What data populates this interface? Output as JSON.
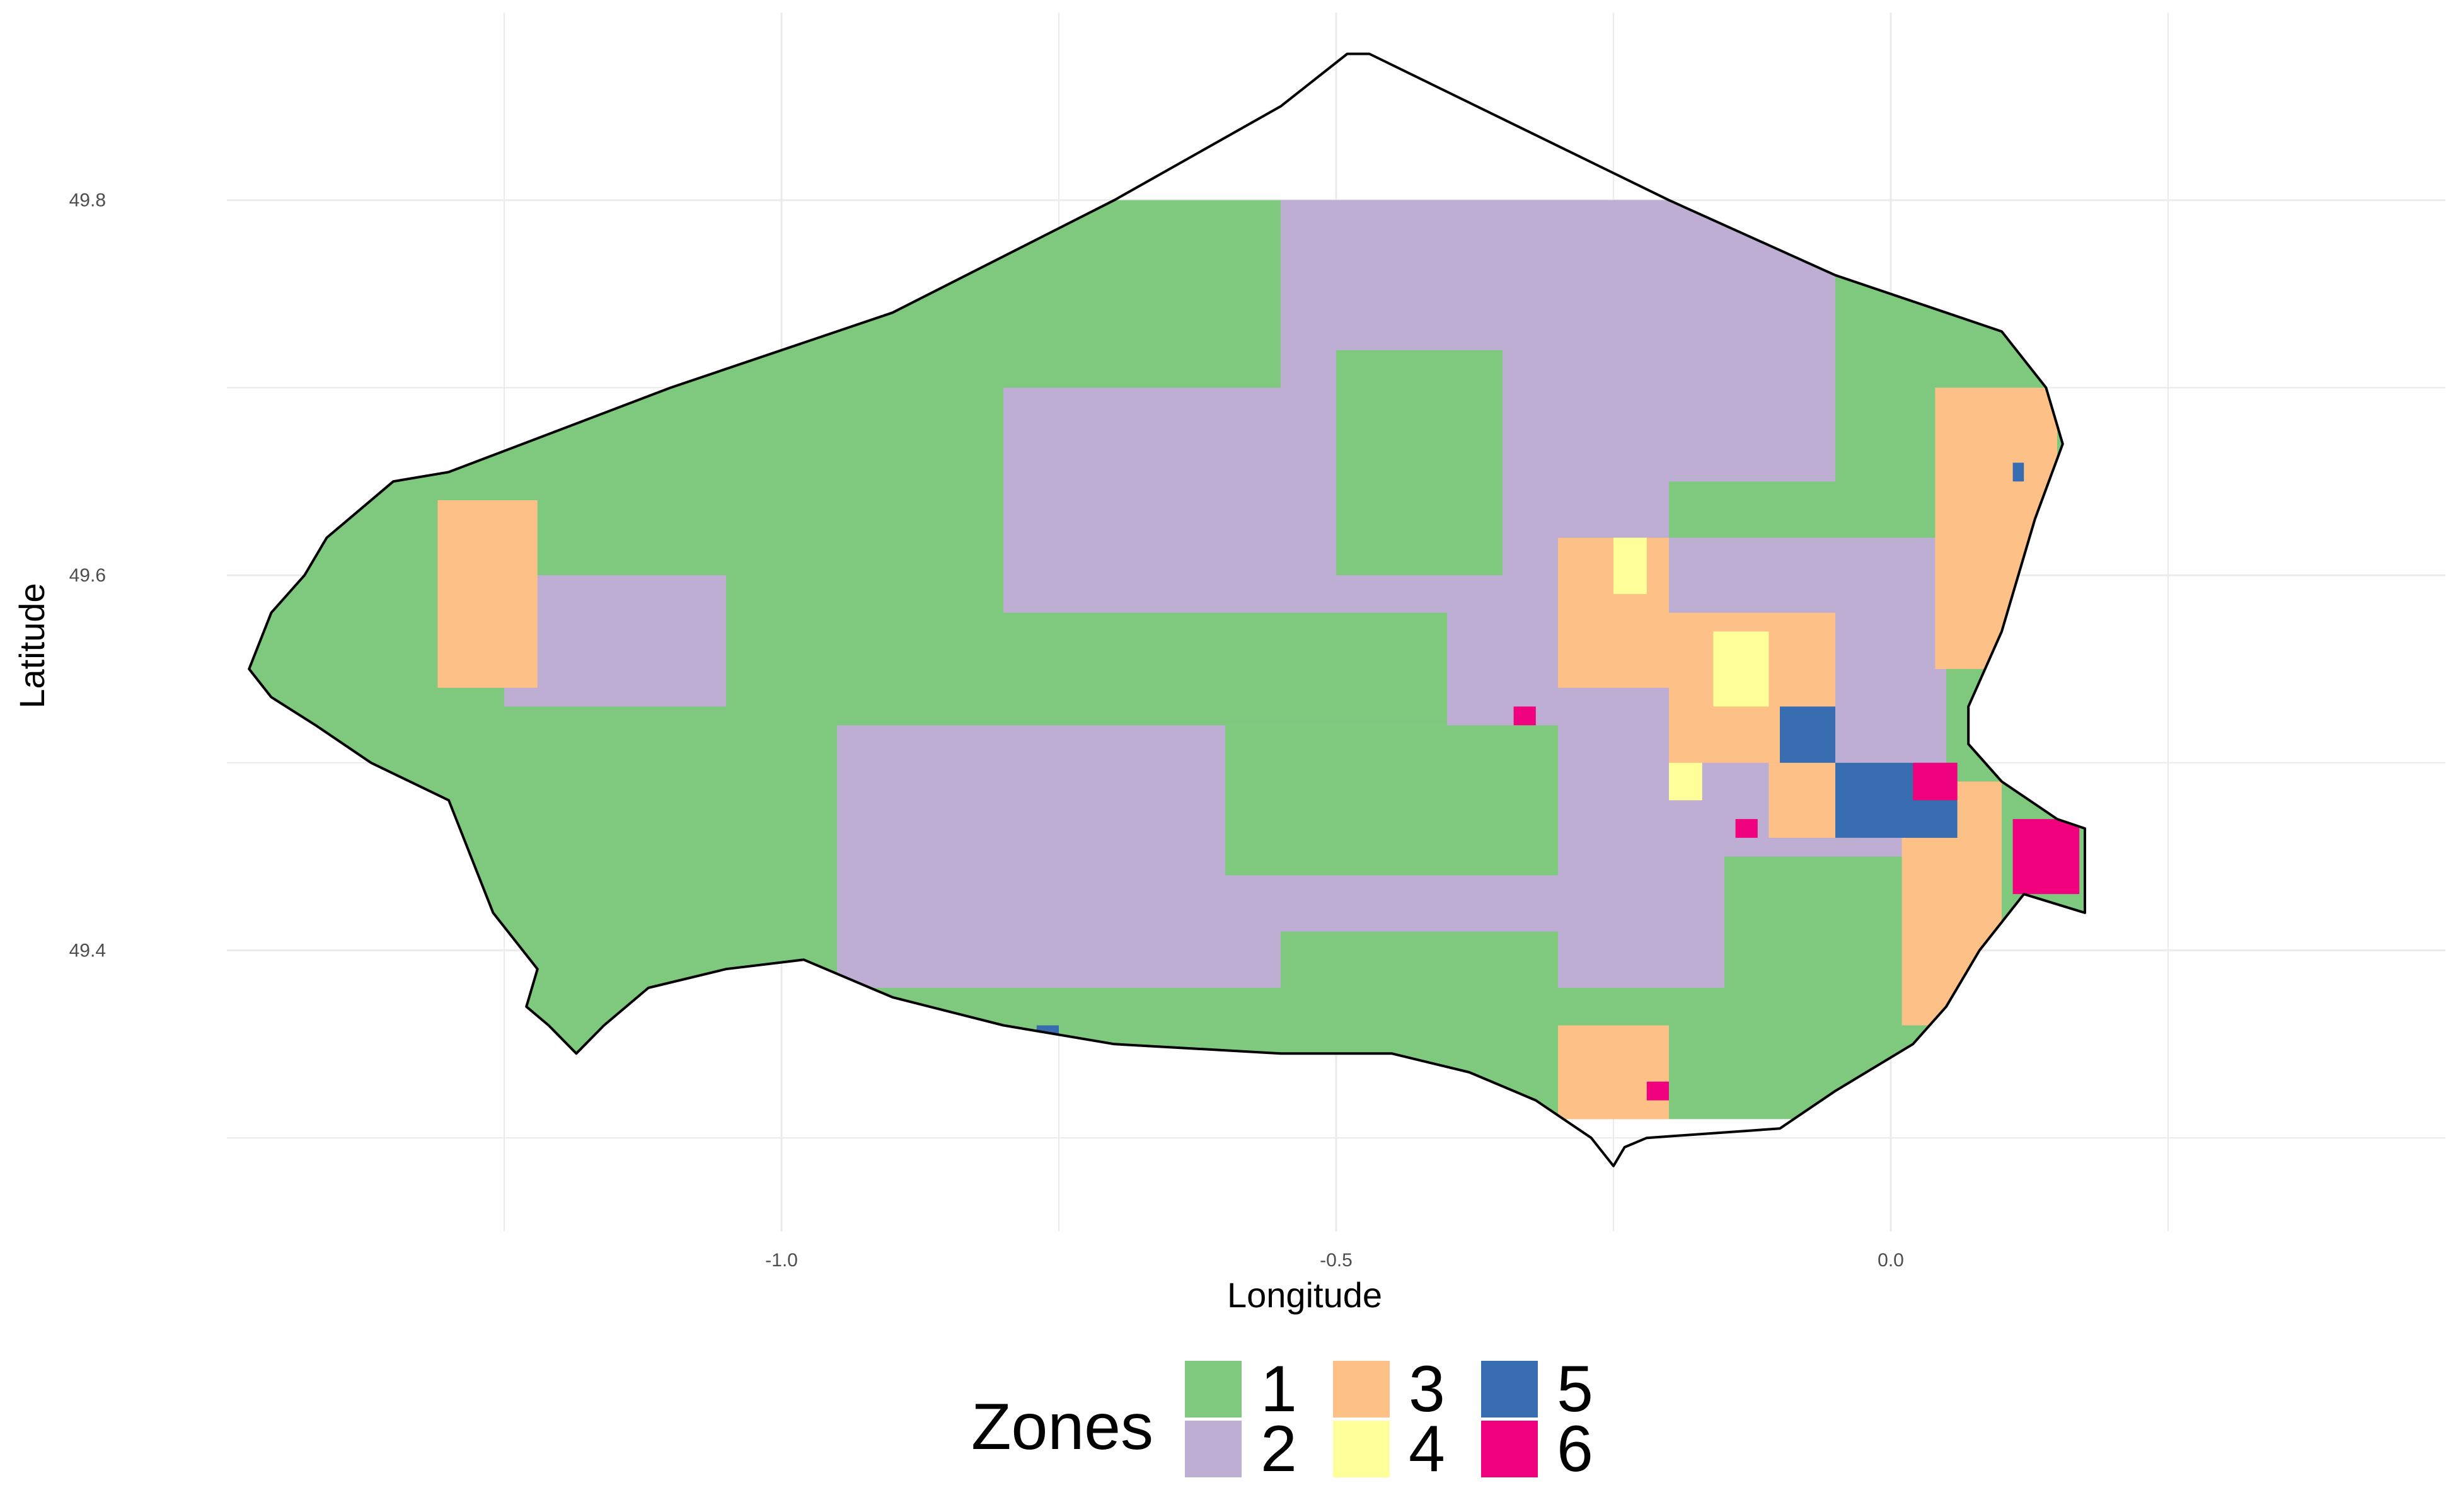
{
  "chart_data": {
    "type": "heatmap",
    "title": "",
    "xlabel": "Longitude",
    "ylabel": "Latitude",
    "xlim": [
      -1.5,
      0.5
    ],
    "ylim": [
      49.25,
      49.9
    ],
    "x_ticks": [
      -1.0,
      -0.5,
      0.0
    ],
    "y_ticks": [
      49.4,
      49.6,
      49.8
    ],
    "x_tick_labels": [
      "-1.0",
      "-0.5",
      "0.0"
    ],
    "y_tick_labels": [
      "49.4",
      "49.6",
      "49.8"
    ],
    "grid": true,
    "legend": {
      "title": "Zones",
      "placement": "bottom",
      "entries": [
        {
          "label": "1",
          "color": "#7fc97f"
        },
        {
          "label": "2",
          "color": "#beaed4"
        },
        {
          "label": "3",
          "color": "#fdc086"
        },
        {
          "label": "4",
          "color": "#ffff99"
        },
        {
          "label": "5",
          "color": "#386cb0"
        },
        {
          "label": "6",
          "color": "#f0027f"
        }
      ]
    },
    "zones_approx": [
      {
        "zone": 2,
        "lon": [
          -0.8,
          -0.4
        ],
        "lat": [
          49.58,
          49.7
        ]
      },
      {
        "zone": 2,
        "lon": [
          -0.55,
          -0.2
        ],
        "lat": [
          49.6,
          49.8
        ]
      },
      {
        "zone": 2,
        "lon": [
          -0.95,
          -0.15
        ],
        "lat": [
          49.38,
          49.52
        ]
      },
      {
        "zone": 2,
        "lon": [
          -0.4,
          0.05
        ],
        "lat": [
          49.45,
          49.62
        ]
      },
      {
        "zone": 2,
        "lon": [
          -0.25,
          -0.05
        ],
        "lat": [
          49.65,
          49.8
        ]
      },
      {
        "zone": 2,
        "lon": [
          -1.25,
          -1.05
        ],
        "lat": [
          49.53,
          49.6
        ]
      },
      {
        "zone": 1,
        "lon": [
          -0.5,
          -0.35
        ],
        "lat": [
          49.6,
          49.72
        ]
      },
      {
        "zone": 1,
        "lon": [
          -0.6,
          -0.3
        ],
        "lat": [
          49.44,
          49.52
        ]
      },
      {
        "zone": 1,
        "lon": [
          -0.55,
          -0.3
        ],
        "lat": [
          49.34,
          49.41
        ]
      },
      {
        "zone": 3,
        "lon": [
          -1.31,
          -1.22
        ],
        "lat": [
          49.54,
          49.64
        ]
      },
      {
        "zone": 3,
        "lon": [
          -0.3,
          -0.2
        ],
        "lat": [
          49.54,
          49.62
        ]
      },
      {
        "zone": 3,
        "lon": [
          -0.2,
          -0.05
        ],
        "lat": [
          49.5,
          49.58
        ]
      },
      {
        "zone": 3,
        "lon": [
          0.01,
          0.1
        ],
        "lat": [
          49.36,
          49.49
        ]
      },
      {
        "zone": 3,
        "lon": [
          0.04,
          0.15
        ],
        "lat": [
          49.55,
          49.7
        ]
      },
      {
        "zone": 3,
        "lon": [
          -0.3,
          -0.2
        ],
        "lat": [
          49.31,
          49.36
        ]
      },
      {
        "zone": 3,
        "lon": [
          -0.11,
          -0.03
        ],
        "lat": [
          49.46,
          49.5
        ]
      },
      {
        "zone": 4,
        "lon": [
          -0.16,
          -0.11
        ],
        "lat": [
          49.53,
          49.57
        ]
      },
      {
        "zone": 4,
        "lon": [
          -0.25,
          -0.22
        ],
        "lat": [
          49.59,
          49.62
        ]
      },
      {
        "zone": 4,
        "lon": [
          -0.2,
          -0.17
        ],
        "lat": [
          49.48,
          49.5
        ]
      },
      {
        "zone": 5,
        "lon": [
          -0.05,
          0.06
        ],
        "lat": [
          49.46,
          49.5
        ]
      },
      {
        "zone": 5,
        "lon": [
          -0.1,
          -0.05
        ],
        "lat": [
          49.5,
          49.53
        ]
      },
      {
        "zone": 5,
        "lon": [
          -0.77,
          -0.75
        ],
        "lat": [
          49.35,
          49.36
        ]
      },
      {
        "zone": 5,
        "lon": [
          0.11,
          0.12
        ],
        "lat": [
          49.65,
          49.66
        ]
      },
      {
        "zone": 6,
        "lon": [
          0.11,
          0.17
        ],
        "lat": [
          49.43,
          49.47
        ]
      },
      {
        "zone": 6,
        "lon": [
          0.02,
          0.06
        ],
        "lat": [
          49.48,
          49.5
        ]
      },
      {
        "zone": 6,
        "lon": [
          -0.34,
          -0.32
        ],
        "lat": [
          49.52,
          49.53
        ]
      },
      {
        "zone": 6,
        "lon": [
          -0.14,
          -0.12
        ],
        "lat": [
          49.46,
          49.47
        ]
      },
      {
        "zone": 6,
        "lon": [
          -0.22,
          -0.2
        ],
        "lat": [
          49.32,
          49.33
        ]
      }
    ]
  }
}
